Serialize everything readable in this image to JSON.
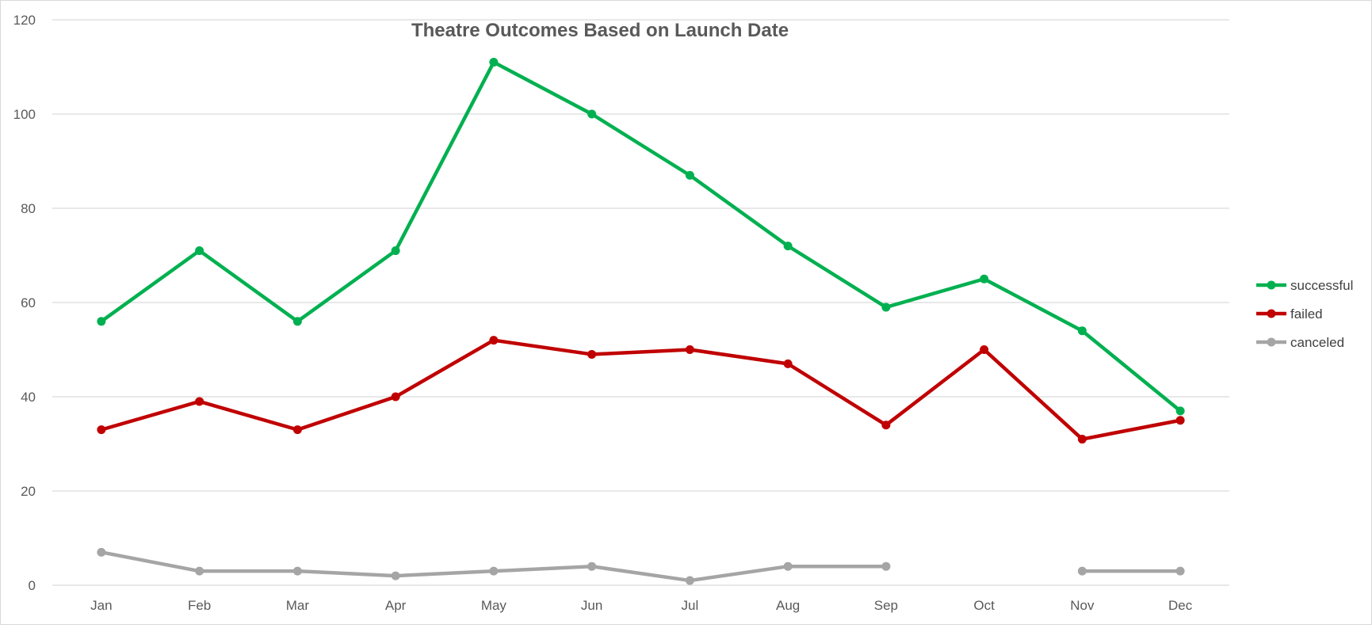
{
  "chart_data": {
    "type": "line",
    "title": "Theatre Outcomes Based on Launch Date",
    "xlabel": "",
    "ylabel": "",
    "categories": [
      "Jan",
      "Feb",
      "Mar",
      "Apr",
      "May",
      "Jun",
      "Jul",
      "Aug",
      "Sep",
      "Oct",
      "Nov",
      "Dec"
    ],
    "ylim": [
      0,
      120
    ],
    "yticks": [
      0,
      20,
      40,
      60,
      80,
      100,
      120
    ],
    "grid": true,
    "legend_position": "right",
    "series": [
      {
        "name": "successful",
        "color": "#00b050",
        "values": [
          56,
          71,
          56,
          71,
          111,
          100,
          87,
          72,
          59,
          65,
          54,
          37
        ]
      },
      {
        "name": "failed",
        "color": "#c00000",
        "values": [
          33,
          39,
          33,
          40,
          52,
          49,
          50,
          47,
          34,
          50,
          31,
          35
        ]
      },
      {
        "name": "canceled",
        "color": "#a5a5a5",
        "values": [
          7,
          3,
          3,
          2,
          3,
          4,
          1,
          4,
          4,
          null,
          3,
          3
        ]
      }
    ]
  }
}
